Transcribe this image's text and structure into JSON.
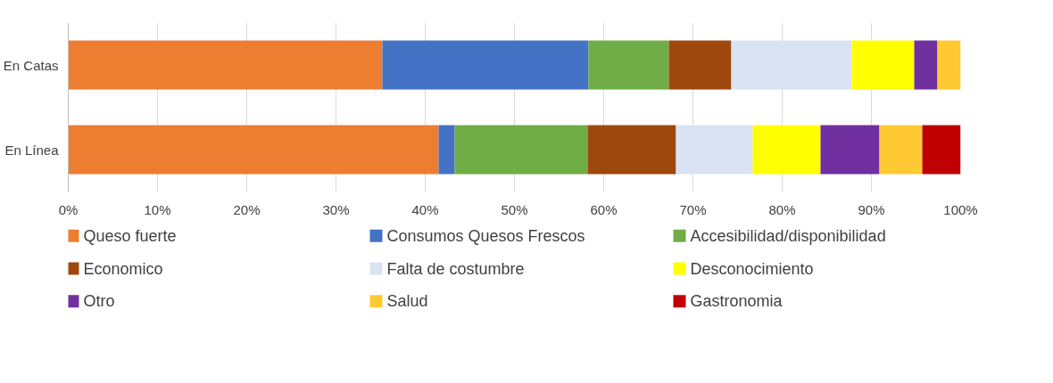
{
  "chart_data": {
    "type": "bar",
    "orientation": "horizontal",
    "stacked": true,
    "categories": [
      "En Catas",
      "En Línea"
    ],
    "xlim": [
      0,
      100
    ],
    "xticks": [
      {
        "value": 0,
        "label": "0%"
      },
      {
        "value": 10,
        "label": "10%"
      },
      {
        "value": 20,
        "label": "20%"
      },
      {
        "value": 30,
        "label": "30%"
      },
      {
        "value": 40,
        "label": "40%"
      },
      {
        "value": 50,
        "label": "50%"
      },
      {
        "value": 60,
        "label": "60%"
      },
      {
        "value": 70,
        "label": "70%"
      },
      {
        "value": 80,
        "label": "80%"
      },
      {
        "value": 90,
        "label": "90%"
      },
      {
        "value": 100,
        "label": "100%"
      }
    ],
    "grid": "x",
    "legend": "bottom",
    "series": [
      {
        "name": "Queso fuerte",
        "color": "#ed7d31",
        "values": [
          35.2,
          41.5
        ]
      },
      {
        "name": "Consumos Quesos Frescos",
        "color": "#4472c4",
        "values": [
          23.1,
          1.8
        ]
      },
      {
        "name": "Accesibilidad/disponibilidad",
        "color": "#70ad47",
        "values": [
          9.0,
          14.9
        ]
      },
      {
        "name": "Economico",
        "color": "#9e480e",
        "values": [
          7.0,
          9.9
        ]
      },
      {
        "name": "Falta de costumbre",
        "color": "#dae3f3",
        "values": [
          13.5,
          8.6
        ]
      },
      {
        "name": "Desconocimiento",
        "color": "#ffff00",
        "values": [
          7.0,
          7.6
        ]
      },
      {
        "name": "Otro",
        "color": "#7030a0",
        "values": [
          2.6,
          6.6
        ]
      },
      {
        "name": "Salud",
        "color": "#ffc933",
        "values": [
          2.6,
          4.8
        ]
      },
      {
        "name": "Gastronomia",
        "color": "#c00000",
        "values": [
          null,
          4.3
        ]
      }
    ]
  }
}
